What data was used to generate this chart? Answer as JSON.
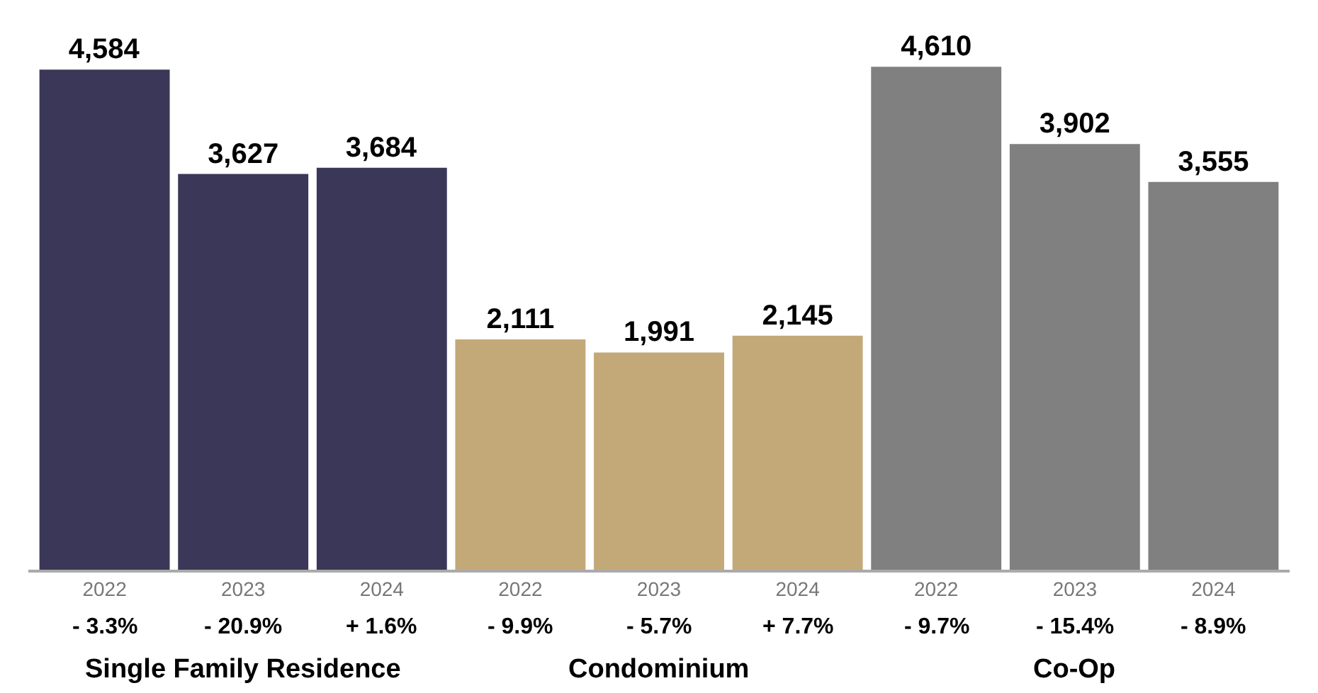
{
  "chart_data": {
    "type": "bar",
    "categories": [
      "2022",
      "2023",
      "2024",
      "2022",
      "2023",
      "2024",
      "2022",
      "2023",
      "2024"
    ],
    "series": [
      {
        "color": "#3a3758",
        "values": [
          4584,
          3627,
          3684,
          null,
          null,
          null,
          null,
          null,
          null
        ],
        "value_labels": [
          "4,584",
          "3,627",
          "3,684",
          null,
          null,
          null,
          null,
          null,
          null
        ]
      },
      {
        "color": "#c3a878",
        "values": [
          null,
          null,
          null,
          2111,
          1991,
          2145,
          null,
          null,
          null
        ],
        "value_labels": [
          null,
          null,
          null,
          "2,111",
          "1,991",
          "2,145",
          null,
          null,
          null
        ]
      },
      {
        "color": "#808080",
        "values": [
          null,
          null,
          null,
          null,
          null,
          null,
          4610,
          3902,
          3555
        ],
        "value_labels": [
          null,
          null,
          null,
          null,
          null,
          null,
          "4,610",
          "3,902",
          "3,555"
        ]
      }
    ],
    "annotations": [
      "- 3.3%",
      "- 20.9%",
      "+ 1.6%",
      "- 9.9%",
      "- 5.7%",
      "+ 7.7%",
      "- 9.7%",
      "- 15.4%",
      "- 8.9%",
      "Single Family Residence",
      "Condominium",
      "Co-Op"
    ],
    "legend": false
  }
}
